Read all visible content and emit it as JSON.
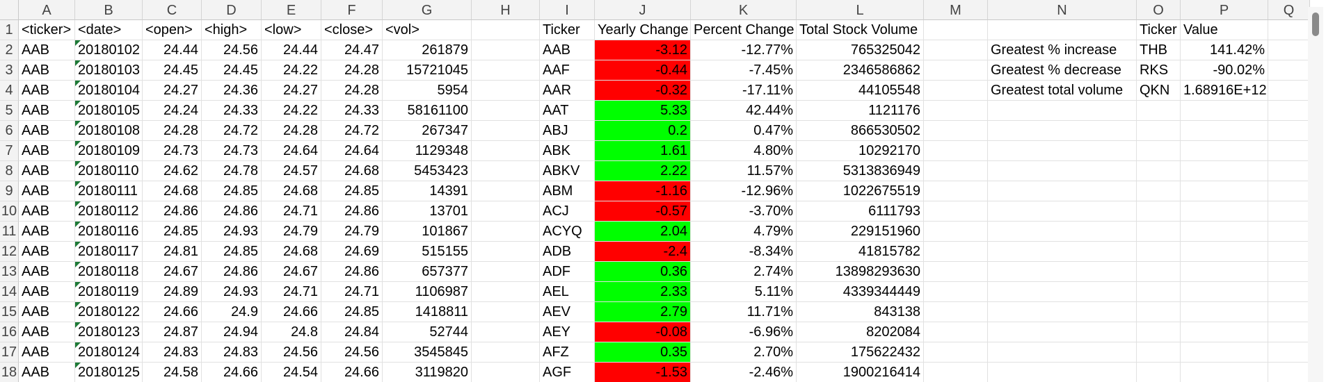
{
  "columns": [
    "A",
    "B",
    "C",
    "D",
    "E",
    "F",
    "G",
    "H",
    "I",
    "J",
    "K",
    "L",
    "M",
    "N",
    "O",
    "P",
    "Q"
  ],
  "rows": [
    {
      "n": "1",
      "A": "<ticker>",
      "B": "<date>",
      "C": "<open>",
      "D": "<high>",
      "E": "<low>",
      "F": "<close>",
      "G": "<vol>",
      "I": "Ticker",
      "J": "Yearly Change",
      "K": "Percent Change",
      "L": "Total Stock Volume",
      "O": "Ticker",
      "P": "Value"
    },
    {
      "n": "2",
      "A": "AAB",
      "B": "20180102",
      "C": "24.44",
      "D": "24.56",
      "E": "24.44",
      "F": "24.47",
      "G": "261879",
      "I": "AAB",
      "J": "-3.12",
      "K": "-12.77%",
      "L": "765325042",
      "N": "Greatest % increase",
      "O": "THB",
      "P": "141.42%"
    },
    {
      "n": "3",
      "A": "AAB",
      "B": "20180103",
      "C": "24.45",
      "D": "24.45",
      "E": "24.22",
      "F": "24.28",
      "G": "15721045",
      "I": "AAF",
      "J": "-0.44",
      "K": "-7.45%",
      "L": "2346586862",
      "N": "Greatest % decrease",
      "O": "RKS",
      "P": "-90.02%"
    },
    {
      "n": "4",
      "A": "AAB",
      "B": "20180104",
      "C": "24.27",
      "D": "24.36",
      "E": "24.27",
      "F": "24.28",
      "G": "5954",
      "I": "AAR",
      "J": "-0.32",
      "K": "-17.11%",
      "L": "44105548",
      "N": "Greatest total volume",
      "O": "QKN",
      "P": "1.68916E+12"
    },
    {
      "n": "5",
      "A": "AAB",
      "B": "20180105",
      "C": "24.24",
      "D": "24.33",
      "E": "24.22",
      "F": "24.33",
      "G": "58161100",
      "I": "AAT",
      "J": "5.33",
      "K": "42.44%",
      "L": "1121176"
    },
    {
      "n": "6",
      "A": "AAB",
      "B": "20180108",
      "C": "24.28",
      "D": "24.72",
      "E": "24.28",
      "F": "24.72",
      "G": "267347",
      "I": "ABJ",
      "J": "0.2",
      "K": "0.47%",
      "L": "866530502"
    },
    {
      "n": "7",
      "A": "AAB",
      "B": "20180109",
      "C": "24.73",
      "D": "24.73",
      "E": "24.64",
      "F": "24.64",
      "G": "1129348",
      "I": "ABK",
      "J": "1.61",
      "K": "4.80%",
      "L": "10292170"
    },
    {
      "n": "8",
      "A": "AAB",
      "B": "20180110",
      "C": "24.62",
      "D": "24.78",
      "E": "24.57",
      "F": "24.68",
      "G": "5453423",
      "I": "ABKV",
      "J": "2.22",
      "K": "11.57%",
      "L": "5313836949"
    },
    {
      "n": "9",
      "A": "AAB",
      "B": "20180111",
      "C": "24.68",
      "D": "24.85",
      "E": "24.68",
      "F": "24.85",
      "G": "14391",
      "I": "ABM",
      "J": "-1.16",
      "K": "-12.96%",
      "L": "1022675519"
    },
    {
      "n": "10",
      "A": "AAB",
      "B": "20180112",
      "C": "24.86",
      "D": "24.86",
      "E": "24.71",
      "F": "24.86",
      "G": "13701",
      "I": "ACJ",
      "J": "-0.57",
      "K": "-3.70%",
      "L": "6111793"
    },
    {
      "n": "11",
      "A": "AAB",
      "B": "20180116",
      "C": "24.85",
      "D": "24.93",
      "E": "24.79",
      "F": "24.79",
      "G": "101867",
      "I": "ACYQ",
      "J": "2.04",
      "K": "4.79%",
      "L": "229151960"
    },
    {
      "n": "12",
      "A": "AAB",
      "B": "20180117",
      "C": "24.81",
      "D": "24.85",
      "E": "24.68",
      "F": "24.69",
      "G": "515155",
      "I": "ADB",
      "J": "-2.4",
      "K": "-8.34%",
      "L": "41815782"
    },
    {
      "n": "13",
      "A": "AAB",
      "B": "20180118",
      "C": "24.67",
      "D": "24.86",
      "E": "24.67",
      "F": "24.86",
      "G": "657377",
      "I": "ADF",
      "J": "0.36",
      "K": "2.74%",
      "L": "13898293630"
    },
    {
      "n": "14",
      "A": "AAB",
      "B": "20180119",
      "C": "24.89",
      "D": "24.93",
      "E": "24.71",
      "F": "24.71",
      "G": "1106987",
      "I": "AEL",
      "J": "2.33",
      "K": "5.11%",
      "L": "4339344449"
    },
    {
      "n": "15",
      "A": "AAB",
      "B": "20180122",
      "C": "24.66",
      "D": "24.9",
      "E": "24.66",
      "F": "24.85",
      "G": "1418811",
      "I": "AEV",
      "J": "2.79",
      "K": "11.71%",
      "L": "843138"
    },
    {
      "n": "16",
      "A": "AAB",
      "B": "20180123",
      "C": "24.87",
      "D": "24.94",
      "E": "24.8",
      "F": "24.84",
      "G": "52744",
      "I": "AEY",
      "J": "-0.08",
      "K": "-6.96%",
      "L": "8202084"
    },
    {
      "n": "17",
      "A": "AAB",
      "B": "20180124",
      "C": "24.83",
      "D": "24.83",
      "E": "24.56",
      "F": "24.56",
      "G": "3545845",
      "I": "AFZ",
      "J": "0.35",
      "K": "2.70%",
      "L": "175622432"
    },
    {
      "n": "18",
      "A": "AAB",
      "B": "20180125",
      "C": "24.58",
      "D": "24.66",
      "E": "24.54",
      "F": "24.66",
      "G": "3119820",
      "I": "AGF",
      "J": "-1.53",
      "K": "-2.46%",
      "L": "1900216414"
    }
  ],
  "colors": {
    "positive_fill": "#00ff00",
    "negative_fill": "#ff0000"
  }
}
